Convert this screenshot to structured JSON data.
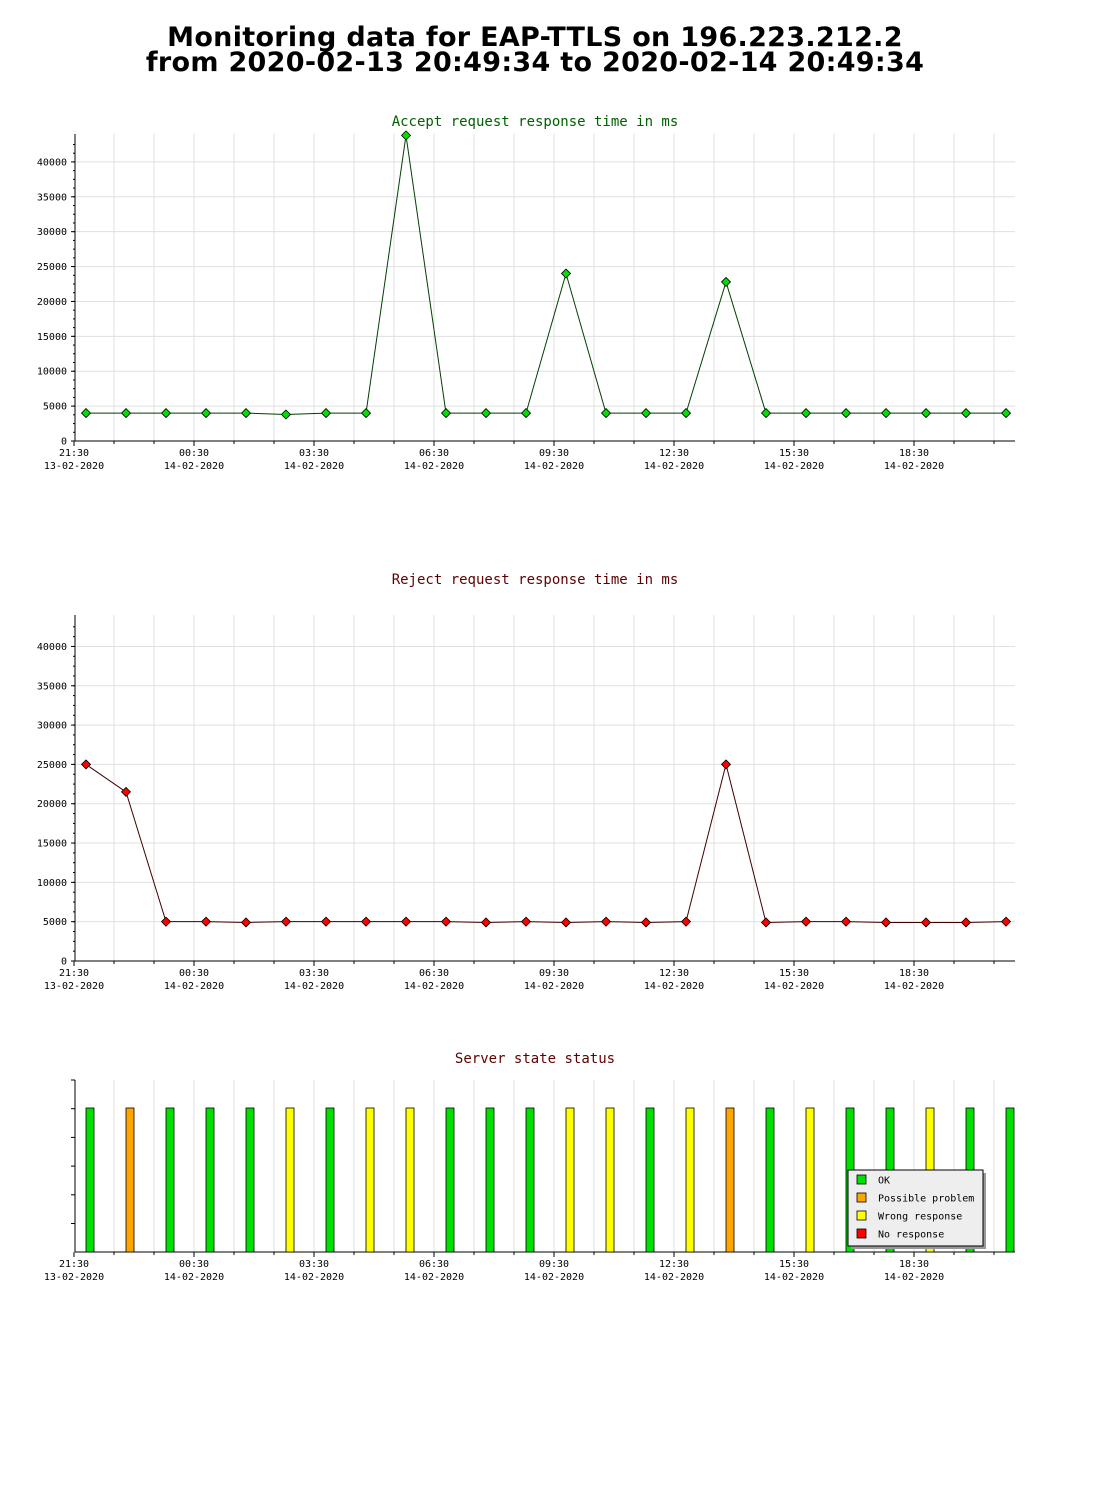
{
  "page": {
    "title_line1": "Monitoring data for EAP-TTLS on 196.223.212.2",
    "title_line2": "from 2020-02-13 20:49:34 to 2020-02-14 20:49:34"
  },
  "colors": {
    "accept_line": "#004000",
    "accept_marker": "#00e000",
    "reject_line": "#400000",
    "reject_marker": "#ff0000",
    "accept_title": "#006000",
    "reject_title": "#600000",
    "status_title": "#600000",
    "grid": "#e0e0e0",
    "status_ok": "#00e000",
    "status_possible_problem": "#ffa500",
    "status_wrong_response": "#ffff00",
    "status_no_response": "#ff0000"
  },
  "chart_data": [
    {
      "type": "line",
      "title": "Accept request response time in ms",
      "x_tick_labels": [
        {
          "time": "21:30",
          "date": "13-02-2020"
        },
        {
          "time": "00:30",
          "date": "14-02-2020"
        },
        {
          "time": "03:30",
          "date": "14-02-2020"
        },
        {
          "time": "06:30",
          "date": "14-02-2020"
        },
        {
          "time": "09:30",
          "date": "14-02-2020"
        },
        {
          "time": "12:30",
          "date": "14-02-2020"
        },
        {
          "time": "15:30",
          "date": "14-02-2020"
        },
        {
          "time": "18:30",
          "date": "14-02-2020"
        }
      ],
      "y_ticks": [
        0,
        5000,
        10000,
        15000,
        20000,
        25000,
        30000,
        35000,
        40000
      ],
      "ylim": [
        0,
        43000
      ],
      "grid": true,
      "series": [
        {
          "values": [
            4000,
            4000,
            4000,
            4000,
            4000,
            3800,
            4000,
            4000,
            43800,
            4000,
            4000,
            4000,
            24000,
            4000,
            4000,
            4000,
            22800,
            4000,
            4000,
            4000,
            4000,
            4000,
            4000,
            4000
          ]
        }
      ]
    },
    {
      "type": "line",
      "title": "Reject request response time in ms",
      "x_tick_labels": [
        {
          "time": "21:30",
          "date": "13-02-2020"
        },
        {
          "time": "00:30",
          "date": "14-02-2020"
        },
        {
          "time": "03:30",
          "date": "14-02-2020"
        },
        {
          "time": "06:30",
          "date": "14-02-2020"
        },
        {
          "time": "09:30",
          "date": "14-02-2020"
        },
        {
          "time": "12:30",
          "date": "14-02-2020"
        },
        {
          "time": "15:30",
          "date": "14-02-2020"
        },
        {
          "time": "18:30",
          "date": "14-02-2020"
        }
      ],
      "y_ticks": [
        0,
        5000,
        10000,
        15000,
        20000,
        25000,
        30000,
        35000,
        40000
      ],
      "ylim": [
        0,
        43000
      ],
      "grid": true,
      "series": [
        {
          "values": [
            25000,
            21500,
            5000,
            5000,
            4900,
            5000,
            5000,
            5000,
            5000,
            5000,
            4900,
            5000,
            4900,
            5000,
            4900,
            5000,
            25000,
            4900,
            5000,
            5000,
            4900,
            4900,
            4900,
            5000
          ]
        }
      ]
    },
    {
      "type": "bar",
      "title": "Server state status",
      "x_tick_labels": [
        {
          "time": "21:30",
          "date": "13-02-2020"
        },
        {
          "time": "00:30",
          "date": "14-02-2020"
        },
        {
          "time": "03:30",
          "date": "14-02-2020"
        },
        {
          "time": "06:30",
          "date": "14-02-2020"
        },
        {
          "time": "09:30",
          "date": "14-02-2020"
        },
        {
          "time": "12:30",
          "date": "14-02-2020"
        },
        {
          "time": "15:30",
          "date": "14-02-2020"
        },
        {
          "time": "18:30",
          "date": "14-02-2020"
        }
      ],
      "legend_placement": "bottom-right",
      "legend": [
        {
          "key": "ok",
          "label": "OK"
        },
        {
          "key": "possible_problem",
          "label": "Possible problem"
        },
        {
          "key": "wrong_response",
          "label": "Wrong response"
        },
        {
          "key": "no_response",
          "label": "No response"
        }
      ],
      "states": [
        "ok",
        "possible_problem",
        "ok",
        "ok",
        "ok",
        "wrong_response",
        "ok",
        "wrong_response",
        "wrong_response",
        "ok",
        "ok",
        "ok",
        "wrong_response",
        "wrong_response",
        "ok",
        "wrong_response",
        "possible_problem",
        "ok",
        "wrong_response",
        "ok",
        "ok",
        "wrong_response",
        "ok",
        "ok"
      ]
    }
  ]
}
